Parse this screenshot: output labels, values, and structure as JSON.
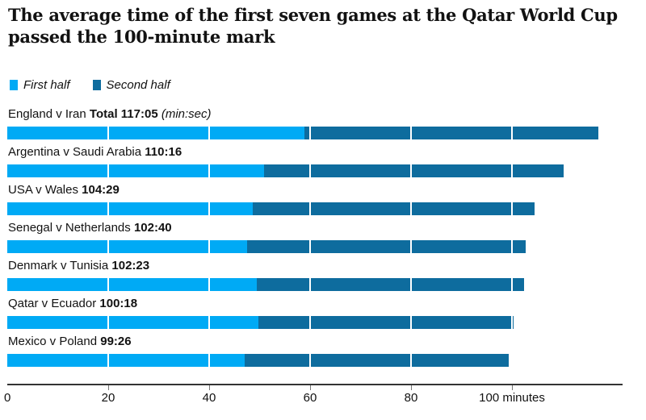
{
  "title": "The average time of the first seven games at the Qatar World Cup passed the 100-minute mark",
  "legend": [
    {
      "label": "First half",
      "color": "#00aaf5"
    },
    {
      "label": "Second half",
      "color": "#0e6c9e"
    }
  ],
  "chart_data": {
    "type": "bar",
    "stacked": true,
    "orientation": "horizontal",
    "unit": "minutes (min:sec)",
    "xlim": [
      0,
      120
    ],
    "grid": "white vertical lines over bars every 20 minutes",
    "legend_position": "top-left",
    "series_names": [
      "First half",
      "Second half"
    ],
    "colors": {
      "first_half": "#00aaf5",
      "second_half": "#0e6c9e"
    },
    "rows": [
      {
        "name": "England v Iran",
        "time_label": "Total 117:05",
        "time_suffix": "(min:sec)",
        "total_min": 117.08,
        "first_half_min": 58.8,
        "second_half_min": 58.28
      },
      {
        "name": "Argentina v Saudi Arabia",
        "time_label": "110:16",
        "time_suffix": "",
        "total_min": 110.27,
        "first_half_min": 50.9,
        "second_half_min": 59.37
      },
      {
        "name": "USA v Wales",
        "time_label": "104:29",
        "time_suffix": "",
        "total_min": 104.48,
        "first_half_min": 48.6,
        "second_half_min": 55.88
      },
      {
        "name": "Senegal v Netherlands",
        "time_label": "102:40",
        "time_suffix": "",
        "total_min": 102.67,
        "first_half_min": 47.5,
        "second_half_min": 55.17
      },
      {
        "name": "Denmark v Tunisia",
        "time_label": "102:23",
        "time_suffix": "",
        "total_min": 102.38,
        "first_half_min": 49.4,
        "second_half_min": 52.98
      },
      {
        "name": "Qatar v Ecuador",
        "time_label": "100:18",
        "time_suffix": "",
        "total_min": 100.3,
        "first_half_min": 49.8,
        "second_half_min": 50.5
      },
      {
        "name": "Mexico v Poland",
        "time_label": "99:26",
        "time_suffix": "",
        "total_min": 99.43,
        "first_half_min": 47.0,
        "second_half_min": 52.43
      }
    ],
    "x_axis": {
      "ticks": [
        {
          "value": 0,
          "label": "0",
          "has_mark": false
        },
        {
          "value": 20,
          "label": "20",
          "has_mark": true
        },
        {
          "value": 40,
          "label": "40",
          "has_mark": true
        },
        {
          "value": 60,
          "label": "60",
          "has_mark": true
        },
        {
          "value": 80,
          "label": "80",
          "has_mark": true
        },
        {
          "value": 100,
          "label": "100 minutes",
          "has_mark": true
        }
      ],
      "gridline_minutes": [
        20,
        40,
        60,
        80,
        100
      ]
    }
  }
}
